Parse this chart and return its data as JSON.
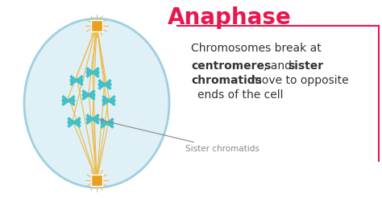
{
  "title": "Anaphase",
  "title_color": "#e8174d",
  "bg_color": "#ffffff",
  "cell_bg": "#dff0f7",
  "cell_edge": "#a0cfe0",
  "spindle_color": "#f0b840",
  "chromatid_color": "#40c0c8",
  "centrosome_color": "#e8a020",
  "annotation_color": "#888888",
  "annotation_text": "Sister chromatids",
  "text_line1": "Chromosomes break at",
  "text_line2_normal": ", and ",
  "text_bold1": "centromeres",
  "text_bold2": "sister\nchromatids",
  "text_line3": " move to opposite\n ends of the cell",
  "border_color": "#e8174d",
  "label_color": "#333333"
}
